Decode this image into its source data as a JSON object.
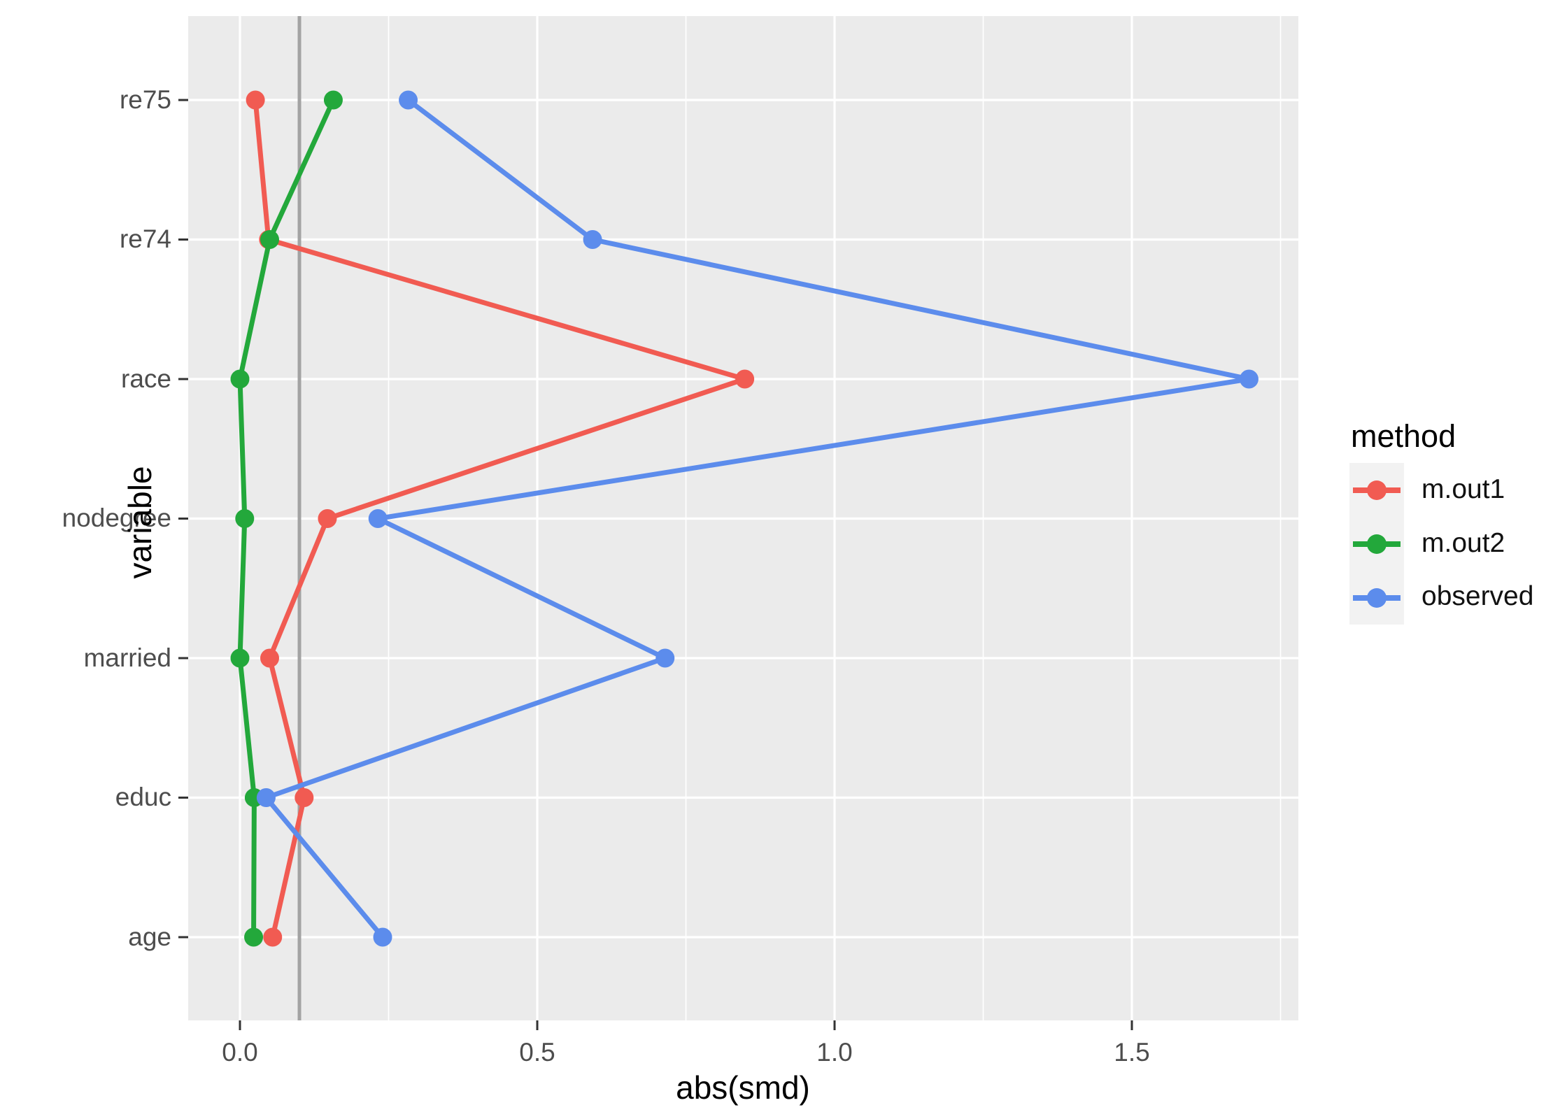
{
  "chart_data": {
    "type": "line",
    "orientation": "horizontal-dotplot",
    "title": "",
    "xlabel": "abs(smd)",
    "ylabel": "variable",
    "categories_top_to_bottom": [
      "re75",
      "re74",
      "race",
      "nodegree",
      "married",
      "educ",
      "age"
    ],
    "x_ticks": [
      {
        "label": "0.0",
        "value": 0.0
      },
      {
        "label": "0.5",
        "value": 0.5
      },
      {
        "label": "1.0",
        "value": 1.0
      },
      {
        "label": "1.5",
        "value": 1.5
      }
    ],
    "x_minor_gridlines": [
      0.25,
      0.75,
      1.25,
      1.75
    ],
    "xlim": [
      -0.087,
      1.78
    ],
    "reference_line_x": 0.1,
    "grid": "major-and-minor, white on gray panel",
    "legend_position": "right",
    "series": [
      {
        "name": "m.out1",
        "color": "#F15B52",
        "values": [
          0.026,
          0.048,
          0.849,
          0.147,
          0.05,
          0.108,
          0.055
        ]
      },
      {
        "name": "m.out2",
        "color": "#23A83B",
        "values": [
          0.157,
          0.05,
          0.0,
          0.008,
          0.0,
          0.024,
          0.023
        ]
      },
      {
        "name": "observed",
        "color": "#5C8CEC",
        "values": [
          0.283,
          0.593,
          1.697,
          0.232,
          0.715,
          0.044,
          0.24
        ]
      }
    ]
  },
  "axes": {
    "x_title": "abs(smd)",
    "y_title": "variable",
    "y_labels": [
      "re75",
      "re74",
      "race",
      "nodegree",
      "married",
      "educ",
      "age"
    ]
  },
  "legend": {
    "title": "method",
    "entries": [
      {
        "label": "m.out1",
        "color": "#F15B52"
      },
      {
        "label": "m.out2",
        "color": "#23A83B"
      },
      {
        "label": "observed",
        "color": "#5C8CEC"
      }
    ]
  },
  "colors": {
    "panel_background": "#EBEBEB",
    "gridline": "#FFFFFF",
    "reference_line": "#A3A3A3",
    "tick_mark": "#333333",
    "tick_text": "#4D4D4D",
    "legend_key_background": "#F2F2F2"
  }
}
